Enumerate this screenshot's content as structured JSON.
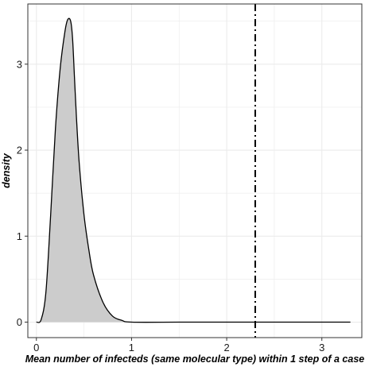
{
  "chart_data": {
    "type": "area",
    "xlabel": "Mean number of infecteds (same molecular type) within 1 step of a case",
    "ylabel": "density",
    "xlim": [
      -0.09,
      3.42
    ],
    "ylim": [
      -0.18,
      3.7
    ],
    "x_ticks": [
      0,
      1,
      2,
      3
    ],
    "y_ticks": [
      0,
      1,
      2,
      3
    ],
    "x_tick_labels": [
      "0",
      "1",
      "2",
      "3"
    ],
    "y_tick_labels": [
      "0",
      "1",
      "2",
      "3"
    ],
    "grid": true,
    "legend": "none",
    "series": [
      {
        "x": [
          0.0,
          0.05,
          0.1,
          0.15,
          0.2,
          0.25,
          0.3,
          0.33,
          0.36,
          0.38,
          0.4,
          0.42,
          0.45,
          0.5,
          0.55,
          0.6,
          0.7,
          0.8,
          0.9,
          1.0,
          1.5,
          2.0,
          2.5,
          3.0,
          3.3
        ],
        "density": [
          0.0,
          0.03,
          0.35,
          1.25,
          2.25,
          2.95,
          3.38,
          3.52,
          3.5,
          3.3,
          2.85,
          2.4,
          1.85,
          1.25,
          0.85,
          0.55,
          0.23,
          0.07,
          0.02,
          0.0,
          0.0,
          0.0,
          0.0,
          0.0,
          0.0
        ]
      }
    ],
    "vline": {
      "x": 2.3,
      "style": "dashdot"
    },
    "colors": {
      "fill": "#cccccc",
      "line": "#000000",
      "grid": "#ebebeb",
      "panel_border": "#333333",
      "background": "#ffffff"
    }
  }
}
